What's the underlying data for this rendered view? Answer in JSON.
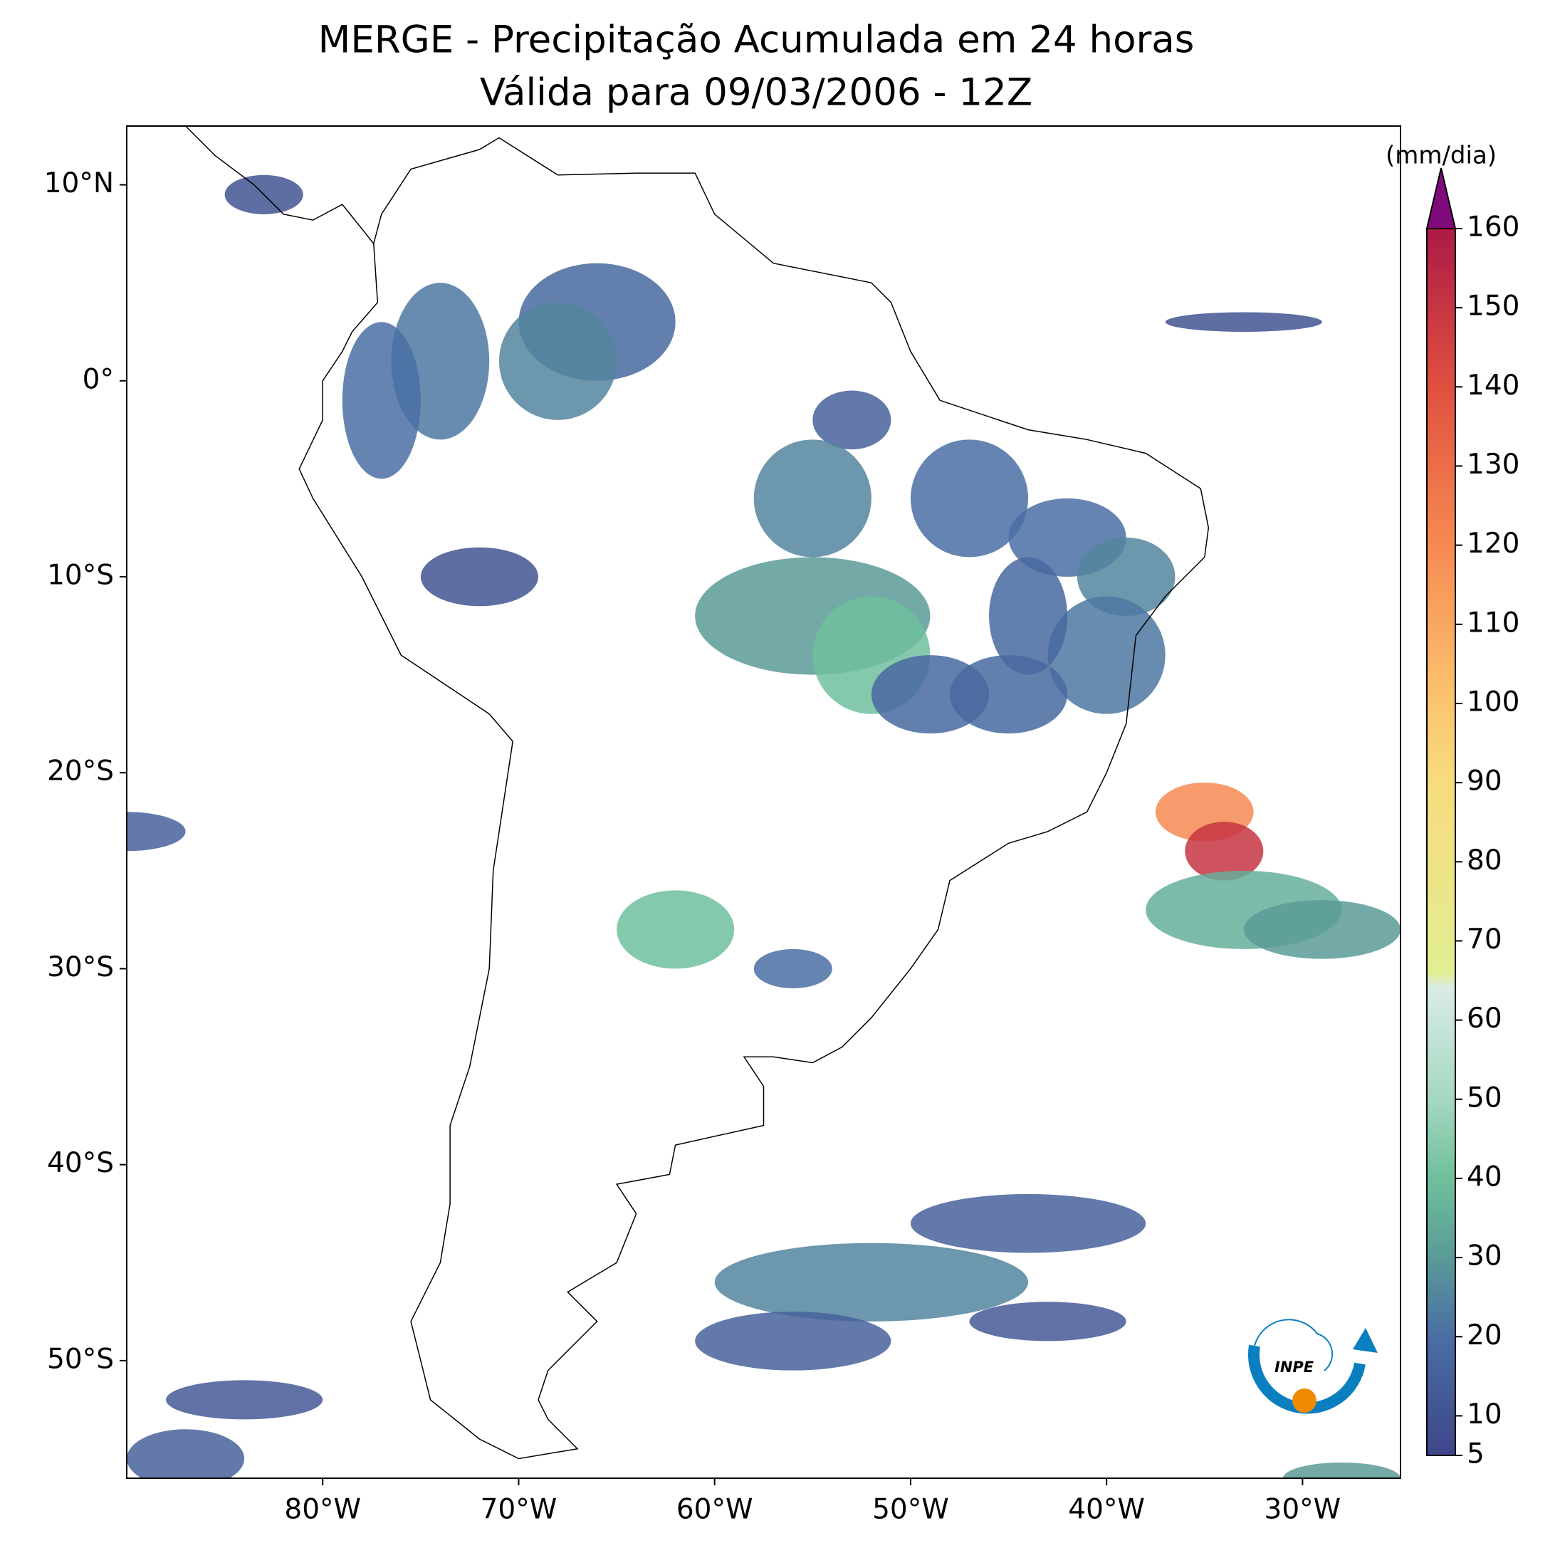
{
  "chart_data": {
    "type": "map",
    "title": "MERGE - Precipitação Acumulada em 24 horas",
    "subtitle": "Válida para 09/03/2006 - 12Z",
    "xlim": [
      -90,
      -25
    ],
    "ylim": [
      -56,
      13
    ],
    "xticks": [
      {
        "value": -80,
        "label": "80°W"
      },
      {
        "value": -70,
        "label": "70°W"
      },
      {
        "value": -60,
        "label": "60°W"
      },
      {
        "value": -50,
        "label": "50°W"
      },
      {
        "value": -40,
        "label": "40°W"
      },
      {
        "value": -30,
        "label": "30°W"
      }
    ],
    "yticks": [
      {
        "value": 10,
        "label": "10°N"
      },
      {
        "value": 0,
        "label": "0°"
      },
      {
        "value": -10,
        "label": "10°S"
      },
      {
        "value": -20,
        "label": "20°S"
      },
      {
        "value": -30,
        "label": "30°S"
      },
      {
        "value": -40,
        "label": "40°S"
      },
      {
        "value": -50,
        "label": "50°S"
      }
    ],
    "colorbar": {
      "label": "(mm/dia)",
      "lim": [
        5,
        160
      ],
      "ticks": [
        5,
        10,
        20,
        30,
        40,
        50,
        60,
        70,
        80,
        90,
        100,
        110,
        120,
        130,
        140,
        150,
        160
      ],
      "color_stops": [
        {
          "value": 5,
          "color": "#3e4689"
        },
        {
          "value": 20,
          "color": "#4a6ea4"
        },
        {
          "value": 30,
          "color": "#5a9b98"
        },
        {
          "value": 40,
          "color": "#6fc09c"
        },
        {
          "value": 50,
          "color": "#a5d8c0"
        },
        {
          "value": 64,
          "color": "#d9ece8"
        },
        {
          "value": 66,
          "color": "#e2ee92"
        },
        {
          "value": 90,
          "color": "#f7dc7e"
        },
        {
          "value": 100,
          "color": "#fbc56f"
        },
        {
          "value": 120,
          "color": "#f68a52"
        },
        {
          "value": 140,
          "color": "#e0503f"
        },
        {
          "value": 160,
          "color": "#ad1a46"
        }
      ],
      "extend_color": "#7f0a7c"
    },
    "logo_text": "INPE"
  }
}
